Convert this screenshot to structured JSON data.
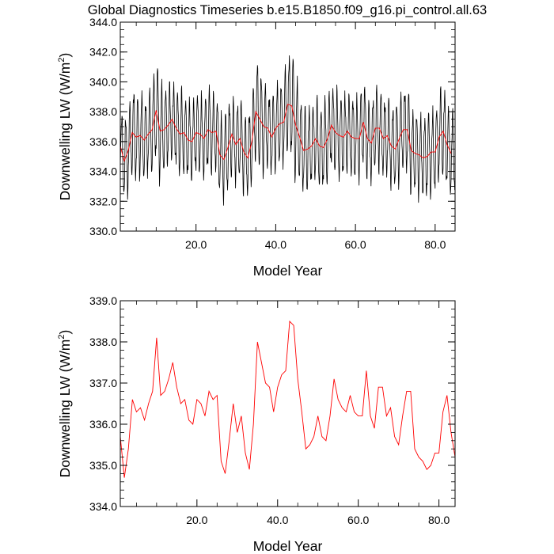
{
  "title": "Global Diagnostics Timeseries b.e15.B1850.f09_g16.pi_control.all.63",
  "colors": {
    "monthly": "#000000",
    "annual": "#ff0000",
    "axes": "#000000"
  },
  "chart_data": [
    {
      "type": "line",
      "xlabel": "Model Year",
      "ylabel": "Downwelling LW (W/m",
      "ylabel_sup": "2",
      "ylabel_close": ")",
      "xlim": [
        1,
        85
      ],
      "ylim": [
        330.0,
        344.0
      ],
      "xticks": [
        20.0,
        40.0,
        60.0,
        80.0
      ],
      "xtick_labels": [
        "20.0",
        "40.0",
        "60.0",
        "80.0"
      ],
      "yticks": [
        330.0,
        332.0,
        334.0,
        336.0,
        338.0,
        340.0,
        342.0,
        344.0
      ],
      "ytick_labels": [
        "330.0",
        "332.0",
        "334.0",
        "336.0",
        "338.0",
        "340.0",
        "342.0",
        "344.0"
      ],
      "series": [
        {
          "color": "#000000",
          "seasonal_amplitude": [
            2.4,
            2.6,
            2.5,
            2.9,
            2.5,
            2.7,
            2.4,
            2.6,
            3.0,
            3.4,
            2.8,
            2.6,
            2.5,
            2.3,
            2.6,
            2.7,
            2.4,
            2.5,
            2.3,
            2.6,
            2.4,
            2.5,
            2.7,
            2.4,
            2.6,
            2.5,
            2.8,
            2.6,
            2.4,
            2.5,
            2.6,
            2.4,
            2.6,
            2.7,
            3.4,
            3.0,
            2.6,
            2.4,
            2.5,
            2.7,
            2.6,
            2.9,
            3.2,
            3.6,
            3.0,
            2.7,
            2.6,
            2.5,
            2.4,
            2.6,
            2.5,
            2.8,
            2.5,
            2.6,
            2.7,
            2.6,
            2.5,
            2.4,
            2.6,
            2.5,
            2.7,
            2.6,
            2.4,
            2.5,
            2.6,
            2.5,
            2.4,
            2.6,
            2.5,
            2.7,
            2.5,
            2.6,
            2.8,
            2.5,
            2.6,
            2.4,
            2.6,
            2.7,
            2.5,
            2.6,
            2.8,
            2.9,
            2.6,
            2.5
          ]
        },
        {
          "color": "#ff0000",
          "x": [
            1,
            2,
            3,
            4,
            5,
            6,
            7,
            8,
            9,
            10,
            11,
            12,
            13,
            14,
            15,
            16,
            17,
            18,
            19,
            20,
            21,
            22,
            23,
            24,
            25,
            26,
            27,
            28,
            29,
            30,
            31,
            32,
            33,
            34,
            35,
            36,
            37,
            38,
            39,
            40,
            41,
            42,
            43,
            44,
            45,
            46,
            47,
            48,
            49,
            50,
            51,
            52,
            53,
            54,
            55,
            56,
            57,
            58,
            59,
            60,
            61,
            62,
            63,
            64,
            65,
            66,
            67,
            68,
            69,
            70,
            71,
            72,
            73,
            74,
            75,
            76,
            77,
            78,
            79,
            80,
            81,
            82,
            83,
            84
          ],
          "values": [
            335.7,
            334.7,
            335.4,
            336.6,
            336.3,
            336.4,
            336.1,
            336.5,
            336.8,
            338.1,
            336.7,
            336.8,
            337.1,
            337.5,
            336.9,
            336.5,
            336.6,
            336.1,
            336.0,
            336.6,
            336.5,
            336.2,
            336.8,
            336.6,
            336.7,
            335.1,
            334.8,
            335.6,
            336.5,
            335.8,
            336.2,
            335.3,
            334.9,
            336.0,
            338.0,
            337.5,
            337.0,
            336.9,
            336.3,
            336.9,
            337.2,
            337.3,
            338.5,
            338.4,
            337.1,
            336.3,
            335.4,
            335.5,
            335.7,
            336.2,
            335.7,
            335.6,
            336.2,
            337.1,
            336.6,
            336.4,
            336.3,
            336.7,
            336.3,
            336.2,
            336.2,
            337.3,
            336.2,
            335.9,
            336.9,
            336.9,
            336.2,
            336.4,
            335.7,
            335.5,
            336.2,
            336.8,
            336.8,
            335.4,
            335.2,
            335.1,
            334.9,
            335.0,
            335.3,
            335.3,
            336.3,
            336.7,
            335.8,
            335.2
          ]
        }
      ]
    },
    {
      "type": "line",
      "xlabel": "Model Year",
      "ylabel": "Downwelling LW (W/m",
      "ylabel_sup": "2",
      "ylabel_close": ")",
      "xlim": [
        1,
        84
      ],
      "ylim": [
        334.0,
        339.0
      ],
      "xticks": [
        20.0,
        40.0,
        60.0,
        80.0
      ],
      "xtick_labels": [
        "20.0",
        "40.0",
        "60.0",
        "80.0"
      ],
      "yticks": [
        334.0,
        335.0,
        336.0,
        337.0,
        338.0,
        339.0
      ],
      "ytick_labels": [
        "334.0",
        "335.0",
        "336.0",
        "337.0",
        "338.0",
        "339.0"
      ],
      "series": [
        {
          "color": "#ff0000",
          "x": [
            1,
            2,
            3,
            4,
            5,
            6,
            7,
            8,
            9,
            10,
            11,
            12,
            13,
            14,
            15,
            16,
            17,
            18,
            19,
            20,
            21,
            22,
            23,
            24,
            25,
            26,
            27,
            28,
            29,
            30,
            31,
            32,
            33,
            34,
            35,
            36,
            37,
            38,
            39,
            40,
            41,
            42,
            43,
            44,
            45,
            46,
            47,
            48,
            49,
            50,
            51,
            52,
            53,
            54,
            55,
            56,
            57,
            58,
            59,
            60,
            61,
            62,
            63,
            64,
            65,
            66,
            67,
            68,
            69,
            70,
            71,
            72,
            73,
            74,
            75,
            76,
            77,
            78,
            79,
            80,
            81,
            82,
            83,
            84
          ],
          "values": [
            335.7,
            334.7,
            335.4,
            336.6,
            336.3,
            336.4,
            336.1,
            336.5,
            336.8,
            338.1,
            336.7,
            336.8,
            337.1,
            337.5,
            336.9,
            336.5,
            336.6,
            336.1,
            336.0,
            336.6,
            336.5,
            336.2,
            336.8,
            336.6,
            336.7,
            335.1,
            334.8,
            335.6,
            336.5,
            335.8,
            336.2,
            335.3,
            334.9,
            336.0,
            338.0,
            337.5,
            337.0,
            336.9,
            336.3,
            336.9,
            337.2,
            337.3,
            338.5,
            338.4,
            337.1,
            336.3,
            335.4,
            335.5,
            335.7,
            336.2,
            335.7,
            335.6,
            336.2,
            337.1,
            336.6,
            336.4,
            336.3,
            336.7,
            336.3,
            336.2,
            336.2,
            337.3,
            336.2,
            335.9,
            336.9,
            336.9,
            336.2,
            336.4,
            335.7,
            335.5,
            336.2,
            336.8,
            336.8,
            335.4,
            335.2,
            335.1,
            334.9,
            335.0,
            335.3,
            335.3,
            336.3,
            336.7,
            335.8,
            335.2
          ]
        }
      ]
    }
  ]
}
